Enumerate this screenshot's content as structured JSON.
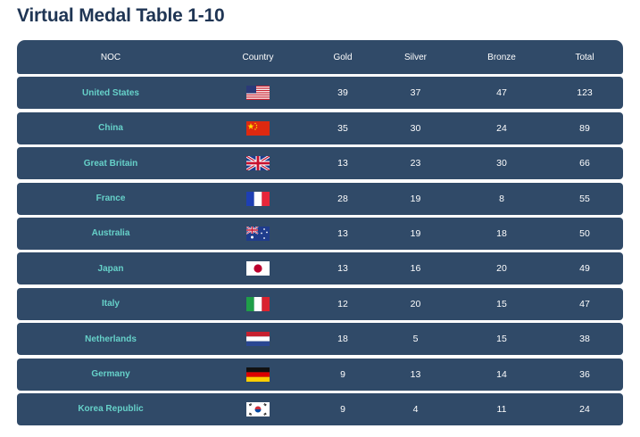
{
  "title": "Virtual Medal Table 1-10",
  "headers": {
    "noc": "NOC",
    "country": "Country",
    "gold": "Gold",
    "silver": "Silver",
    "bronze": "Bronze",
    "total": "Total"
  },
  "colors": {
    "row_bg": "#304a68",
    "noc_text": "#66d1c9",
    "title_text": "#1f3554"
  },
  "rows": [
    {
      "noc": "United States",
      "flag": "usa-flag-icon",
      "gold": "39",
      "silver": "37",
      "bronze": "47",
      "total": "123"
    },
    {
      "noc": "China",
      "flag": "china-flag-icon",
      "gold": "35",
      "silver": "30",
      "bronze": "24",
      "total": "89"
    },
    {
      "noc": "Great Britain",
      "flag": "uk-flag-icon",
      "gold": "13",
      "silver": "23",
      "bronze": "30",
      "total": "66"
    },
    {
      "noc": "France",
      "flag": "france-flag-icon",
      "gold": "28",
      "silver": "19",
      "bronze": "8",
      "total": "55"
    },
    {
      "noc": "Australia",
      "flag": "australia-flag-icon",
      "gold": "13",
      "silver": "19",
      "bronze": "18",
      "total": "50"
    },
    {
      "noc": "Japan",
      "flag": "japan-flag-icon",
      "gold": "13",
      "silver": "16",
      "bronze": "20",
      "total": "49"
    },
    {
      "noc": "Italy",
      "flag": "italy-flag-icon",
      "gold": "12",
      "silver": "20",
      "bronze": "15",
      "total": "47"
    },
    {
      "noc": "Netherlands",
      "flag": "netherlands-flag-icon",
      "gold": "18",
      "silver": "5",
      "bronze": "15",
      "total": "38"
    },
    {
      "noc": "Germany",
      "flag": "germany-flag-icon",
      "gold": "9",
      "silver": "13",
      "bronze": "14",
      "total": "36"
    },
    {
      "noc": "Korea Republic",
      "flag": "korea-flag-icon",
      "gold": "9",
      "silver": "4",
      "bronze": "11",
      "total": "24"
    }
  ]
}
